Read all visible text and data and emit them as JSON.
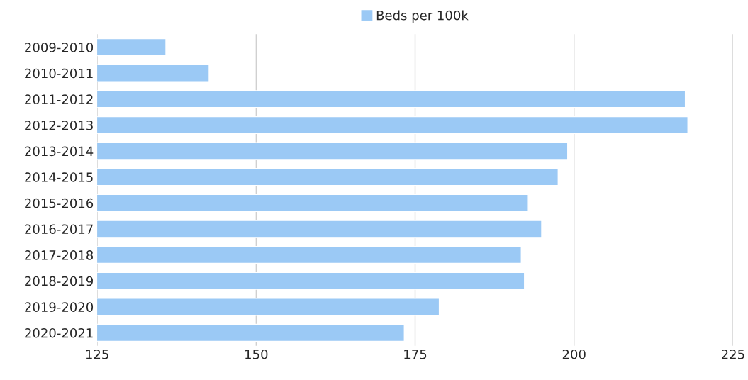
{
  "chart_data": {
    "type": "bar",
    "orientation": "horizontal",
    "categories": [
      "2009-2010",
      "2010-2011",
      "2011-2012",
      "2012-2013",
      "2013-2014",
      "2014-2015",
      "2015-2016",
      "2016-2017",
      "2017-2018",
      "2018-2019",
      "2019-2020",
      "2020-2021"
    ],
    "series": [
      {
        "name": "Beds per 100k",
        "color": "#9bc9f5",
        "values": [
          135.8,
          142.6,
          217.5,
          217.9,
          199.0,
          197.5,
          192.8,
          194.9,
          191.7,
          192.2,
          178.8,
          173.3
        ]
      }
    ],
    "xlim": [
      125,
      225
    ],
    "xticks": [
      125,
      150,
      175,
      200,
      225
    ],
    "grid": "x",
    "legend": "top"
  }
}
